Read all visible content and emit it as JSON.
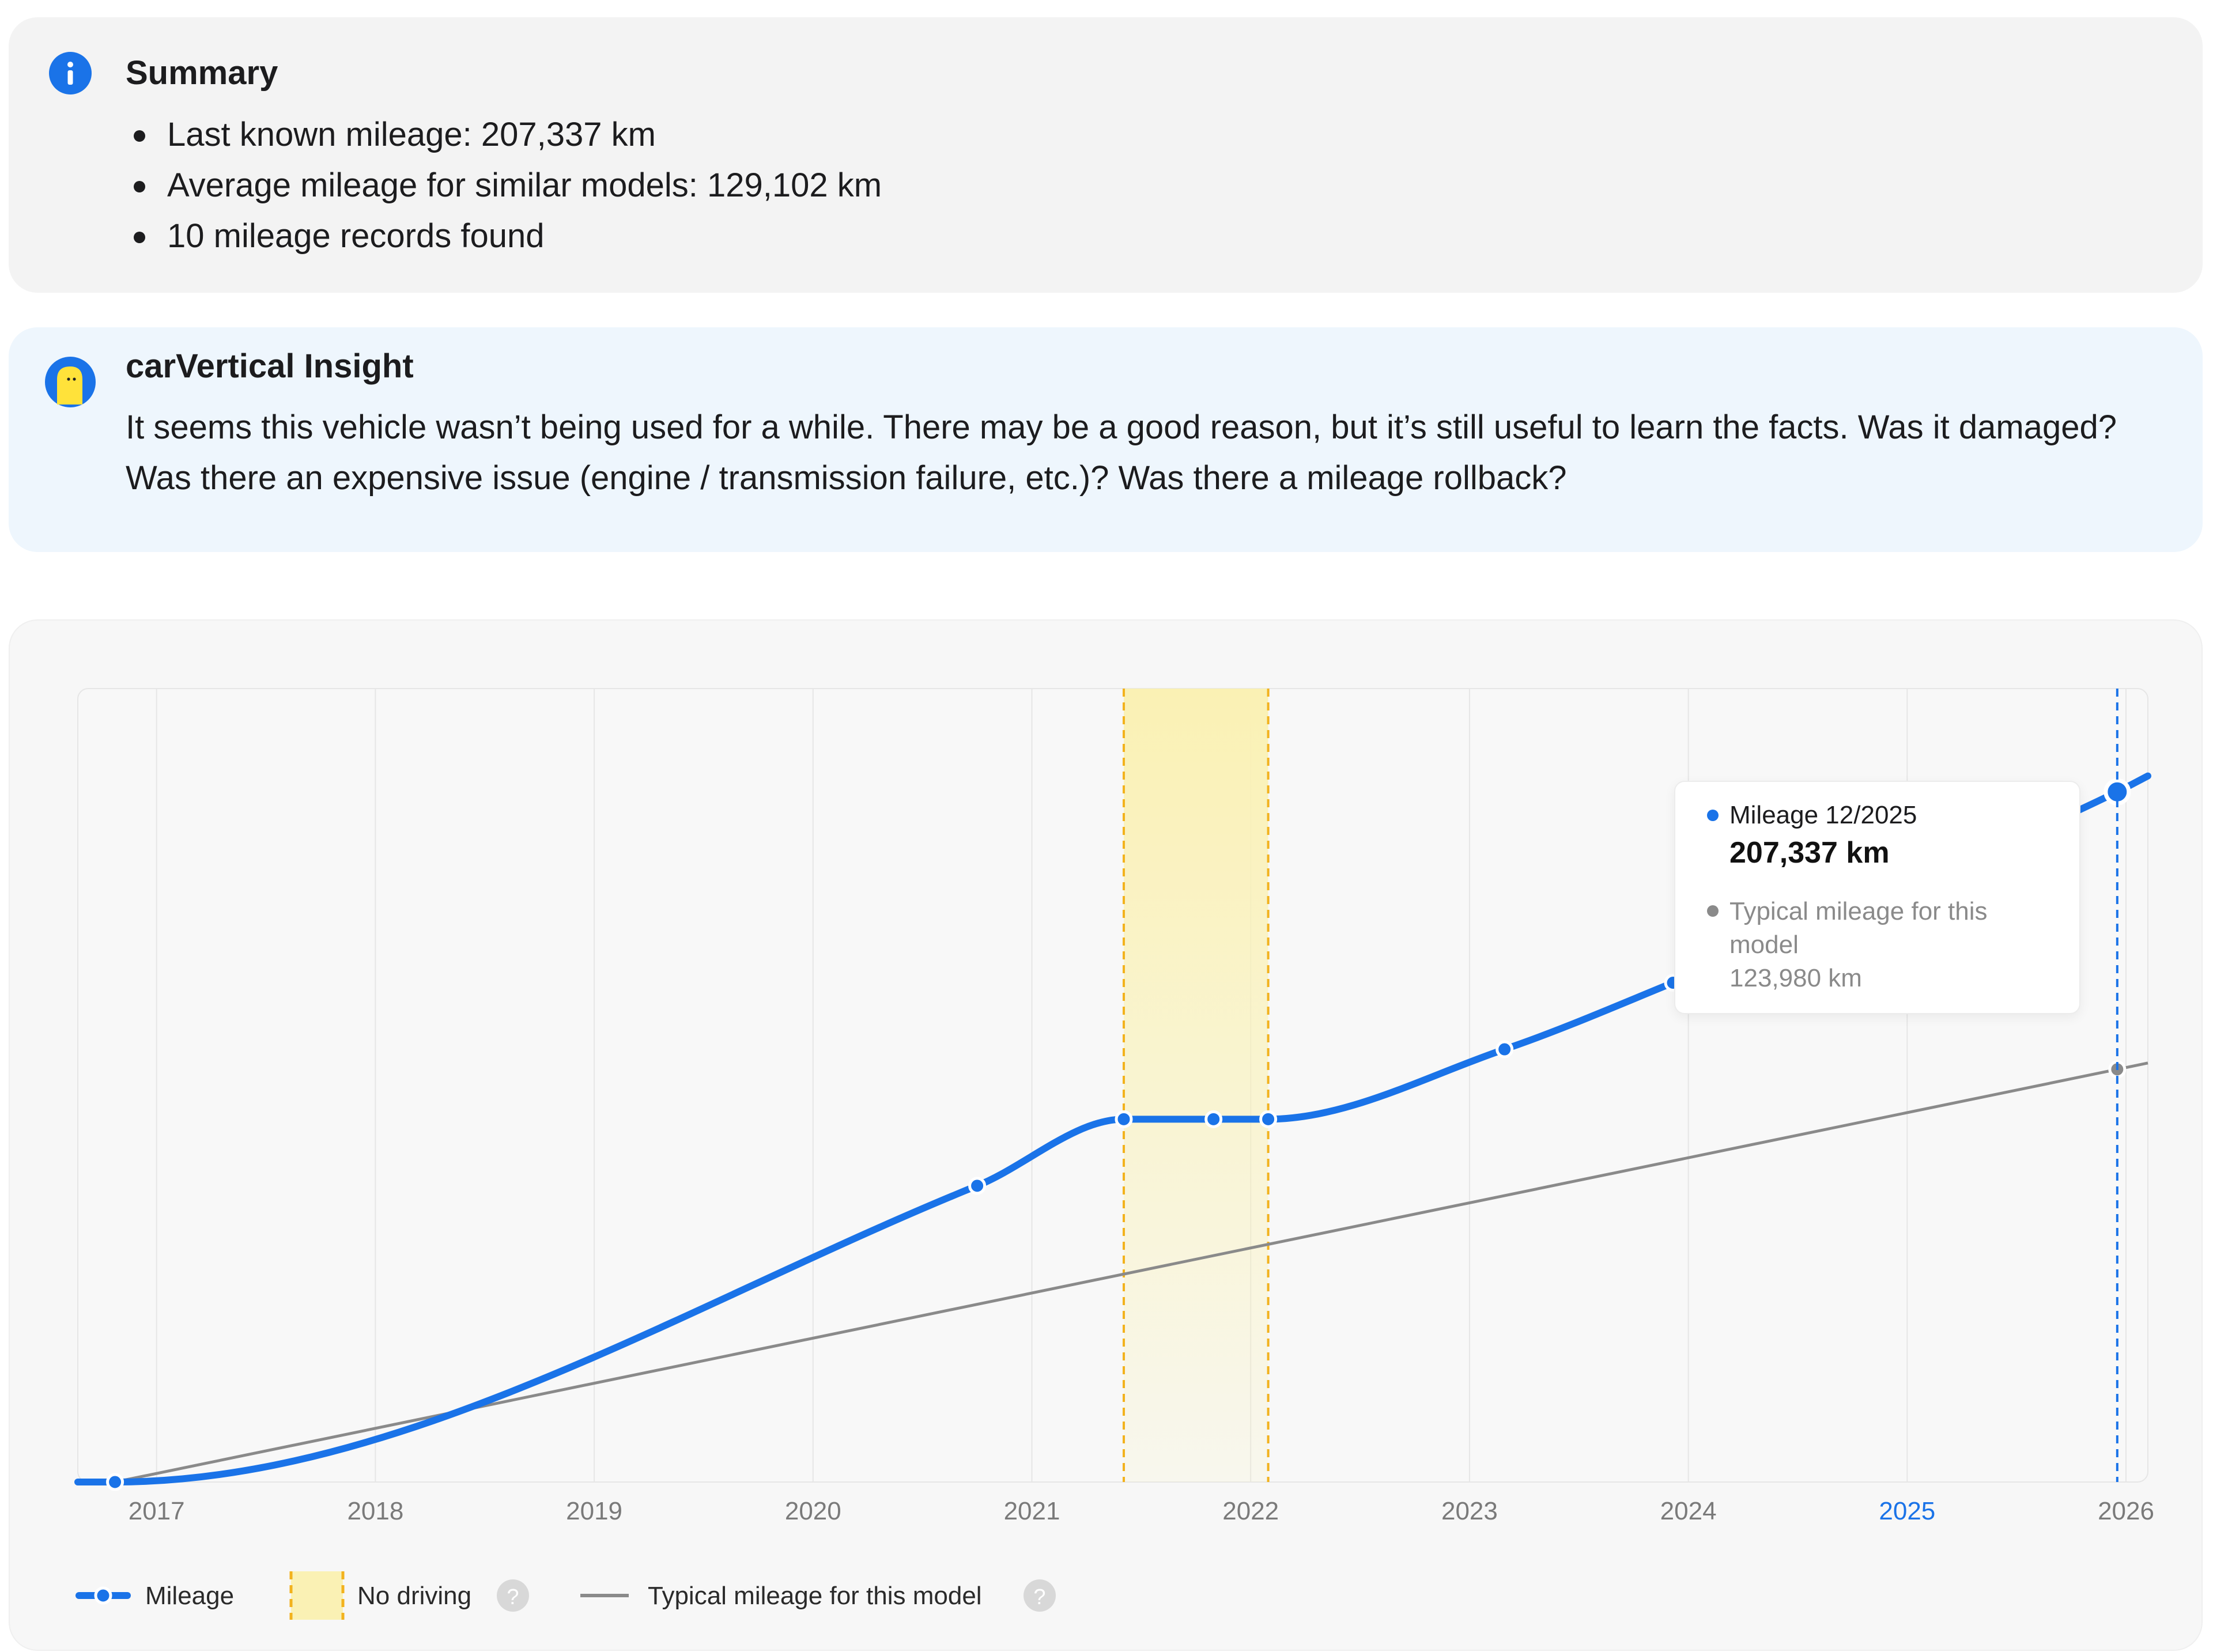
{
  "summary": {
    "title": "Summary",
    "icon": "info-icon",
    "items": [
      "Last known mileage: 207,337 km",
      "Average mileage for similar models: 129,102 km",
      "10 mileage records found"
    ]
  },
  "insight": {
    "title": "carVertical Insight",
    "icon": "carvertical-mascot-icon",
    "text": "It seems this vehicle wasn’t being used for a while. There may be a good reason, but it’s still useful to learn the facts. Was it damaged? Was there an expensive issue (engine / transmission failure, etc.)? Was there a mileage rollback?"
  },
  "colors": {
    "mileage": "#1a73e8",
    "typical": "#8a8a8a",
    "no_driving_border": "#f2b21d",
    "no_driving_fill": "#faf1b4",
    "current_year": "#1a73e8"
  },
  "tooltip": {
    "label": "Mileage 12/2025",
    "value": "207,337 km",
    "typical_label": "Typical mileage for this model",
    "typical_value": "123,980 km"
  },
  "legend": {
    "mileage": "Mileage",
    "no_driving": "No driving",
    "typical": "Typical mileage for this model",
    "help_icon": "question-icon"
  },
  "chart_data": {
    "type": "line",
    "x_tick_labels": [
      "2017",
      "2018",
      "2019",
      "2020",
      "2021",
      "2022",
      "2023",
      "2024",
      "2025",
      "2026"
    ],
    "highlighted_tick": "2025",
    "xlim": [
      2016.64,
      2026.1
    ],
    "ylim": [
      0,
      215000
    ],
    "grid": true,
    "series": [
      {
        "name": "Mileage",
        "points": [
          [
            2016.81,
            0
          ],
          [
            2020.75,
            89000
          ],
          [
            2021.42,
            109000
          ],
          [
            2021.83,
            109000
          ],
          [
            2022.08,
            109000
          ],
          [
            2023.16,
            130000
          ],
          [
            2023.93,
            150000
          ],
          [
            2025.96,
            207337
          ]
        ],
        "records_visible": 8
      },
      {
        "name": "Typical mileage for this model",
        "points": [
          [
            2016.81,
            0
          ],
          [
            2025.96,
            123980
          ]
        ]
      }
    ],
    "no_driving_period": [
      2021.42,
      2022.08
    ],
    "current_marker": 2025.96
  }
}
